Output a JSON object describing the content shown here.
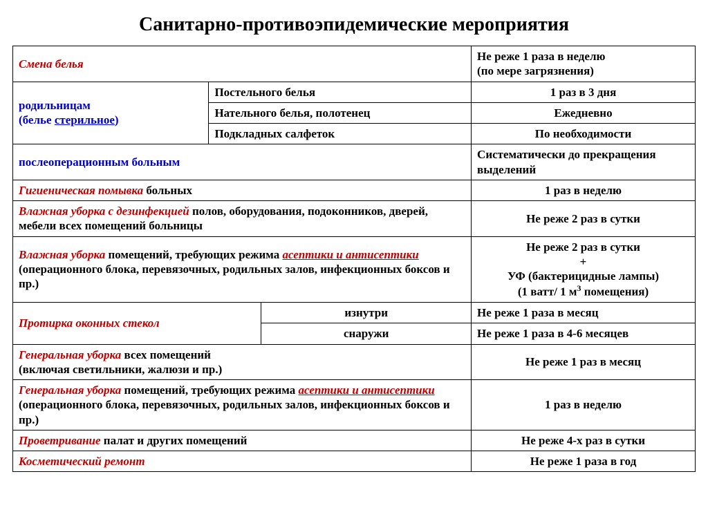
{
  "title": "Санитарно-противоэпидемические мероприятия",
  "r1": {
    "a": "Смена белья",
    "b": "Не реже 1 раза в неделю\n(по мере загрязнения)"
  },
  "r2": {
    "label1": "родильницам",
    "label2a": "(белье ",
    "label2b": "стерильное",
    "label2c": ")",
    "sub1a": "Постельного белья",
    "sub1b": "1 раз в 3 дня",
    "sub2a": "Нательного белья, полотенец",
    "sub2b": "Ежедневно",
    "sub3a": "Подкладных салфеток",
    "sub3b": "По необходимости"
  },
  "r3": {
    "a": "послеоперационным больным",
    "b": "Систематически до прекращения выделений"
  },
  "r4": {
    "a1": "Гигиеническая помывка",
    "a2": " больных",
    "b": "1 раз в неделю"
  },
  "r5": {
    "a1": "Влажная уборка с дезинфекцией",
    "a2": " полов, оборудования, подоконников, дверей, мебели всех помещений больницы",
    "b": "Не реже 2 раз в сутки"
  },
  "r6": {
    "a1": "Влажная уборка",
    "a2": " помещений, требующих режима ",
    "a3": "асептики и антисептики",
    "a4": " (операционного блока, перевязочных, родильных залов, инфекционных боксов и пр.)",
    "b1": "Не реже 2 раз в сутки",
    "b2": "+",
    "b3": "УФ (бактерицидные лампы)",
    "b4a": "(1 ватт/ 1 м",
    "b4b": " помещения)"
  },
  "r7": {
    "label": "Протирка оконных стекол",
    "sub1a": "изнутри",
    "sub1b": "Не реже 1 раза в месяц",
    "sub2a": "снаружи",
    "sub2b": "Не реже 1 раза в 4-6 месяцев"
  },
  "r8": {
    "a1": "Генеральная уборка",
    "a2": " всех помещений\n(включая светильники, жалюзи и пр.)",
    "b": "Не реже 1 раз в месяц"
  },
  "r9": {
    "a1": "Генеральная уборка",
    "a2": " помещений, требующих режима ",
    "a3": "асептики и антисептики",
    "a4": " (операционного блока, перевязочных, родильных залов, инфекционных боксов и пр.)",
    "b": "1 раз в неделю"
  },
  "r10": {
    "a1": "Проветривание",
    "a2": " палат и других помещений",
    "b": "Не реже 4-х раз в сутки"
  },
  "r11": {
    "a": "Косметический ремонт",
    "b": "Не реже 1 раза в год"
  }
}
